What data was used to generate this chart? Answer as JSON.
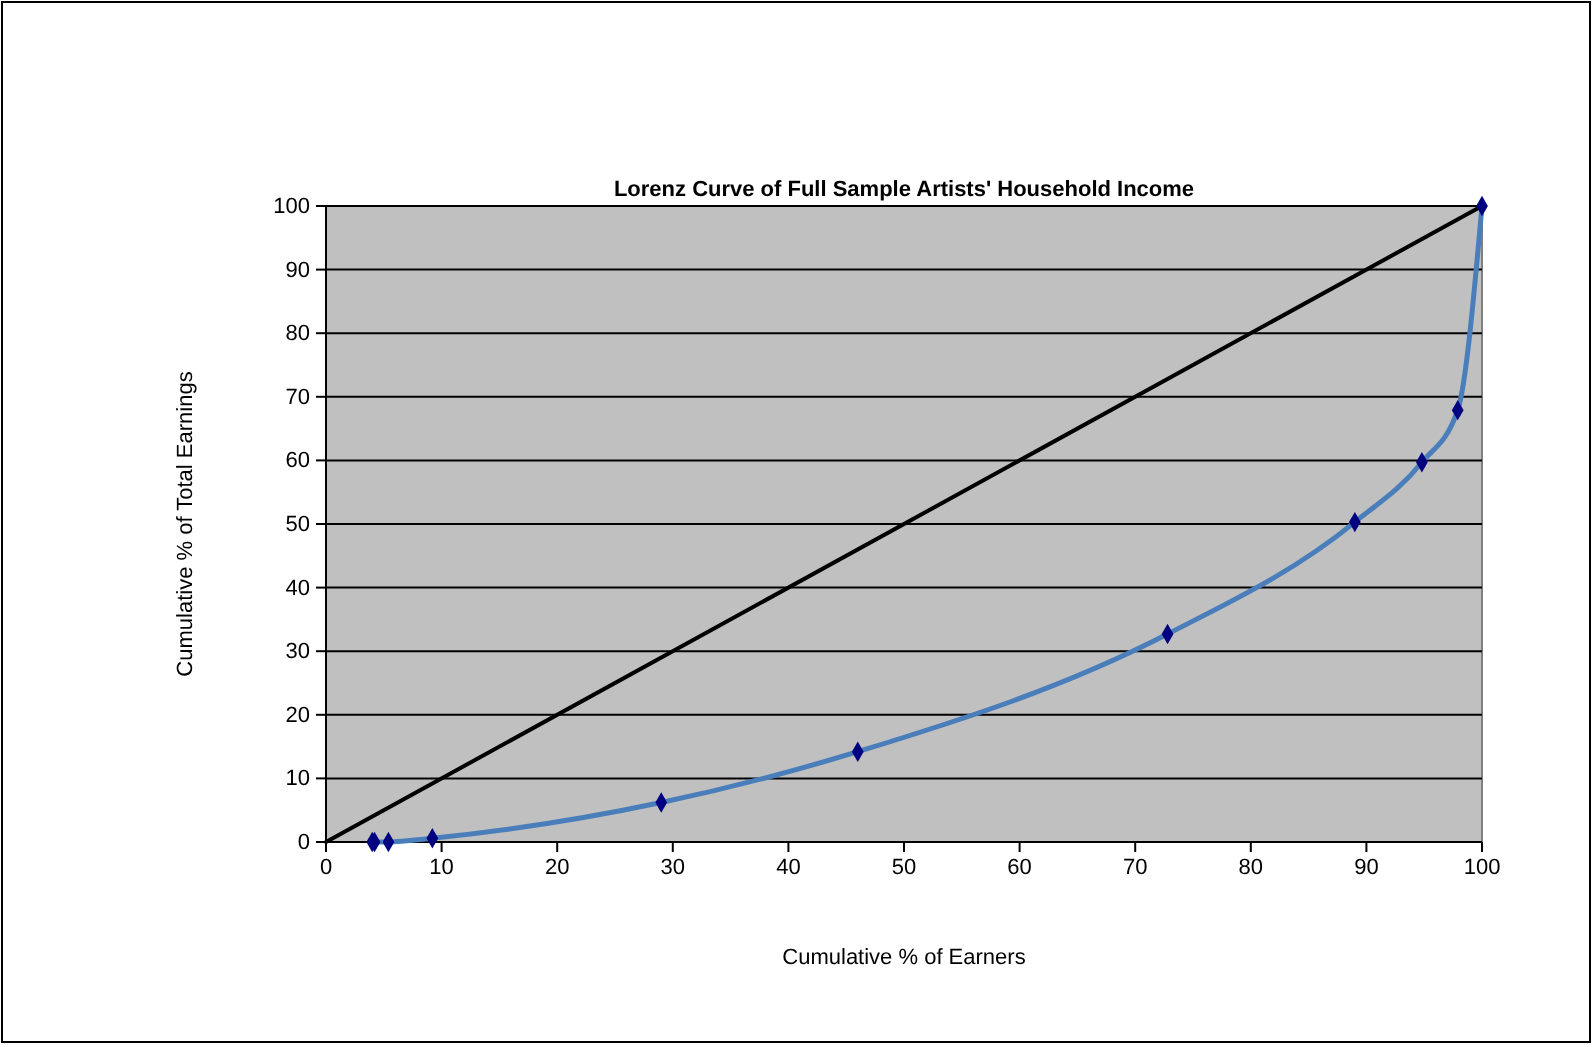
{
  "chart_data": {
    "type": "line",
    "title": "Lorenz Curve of Full Sample Artists' Household Income",
    "xlabel": "Cumulative % of Earners",
    "ylabel": "Cumulative % of Total Earnings",
    "xlim": [
      0,
      100
    ],
    "xticks": [
      0,
      10,
      20,
      30,
      40,
      50,
      60,
      70,
      80,
      90,
      100
    ],
    "ylim": [
      0,
      100
    ],
    "yticks": [
      0,
      10,
      20,
      30,
      40,
      50,
      60,
      70,
      80,
      90,
      100
    ],
    "grid": "y",
    "series": [
      {
        "color": "#000000",
        "x": [
          0,
          100
        ],
        "values": [
          0,
          100
        ]
      },
      {
        "color": "#4a7ebb",
        "marker": "diamond",
        "x": [
          4,
          4.2,
          5.4,
          9.2,
          29,
          46,
          72.8,
          89,
          94.8,
          97.9,
          100
        ],
        "values": [
          0,
          0,
          0,
          0.6,
          6.2,
          14.2,
          32.7,
          50.3,
          59.7,
          67.9,
          100
        ]
      }
    ]
  }
}
